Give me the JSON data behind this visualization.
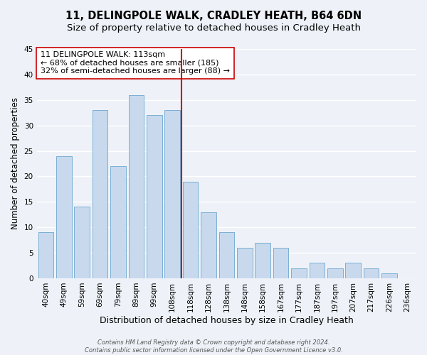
{
  "title": "11, DELINGPOLE WALK, CRADLEY HEATH, B64 6DN",
  "subtitle": "Size of property relative to detached houses in Cradley Heath",
  "xlabel": "Distribution of detached houses by size in Cradley Heath",
  "ylabel": "Number of detached properties",
  "footer_line1": "Contains HM Land Registry data © Crown copyright and database right 2024.",
  "footer_line2": "Contains public sector information licensed under the Open Government Licence v3.0.",
  "bar_labels": [
    "40sqm",
    "49sqm",
    "59sqm",
    "69sqm",
    "79sqm",
    "89sqm",
    "99sqm",
    "108sqm",
    "118sqm",
    "128sqm",
    "138sqm",
    "148sqm",
    "158sqm",
    "167sqm",
    "177sqm",
    "187sqm",
    "197sqm",
    "207sqm",
    "217sqm",
    "226sqm",
    "236sqm"
  ],
  "bar_heights": [
    9,
    24,
    14,
    33,
    22,
    36,
    32,
    33,
    19,
    13,
    9,
    6,
    7,
    6,
    2,
    3,
    2,
    3,
    2,
    1,
    0
  ],
  "bar_color": "#c8d9ed",
  "bar_edge_color": "#7aafd4",
  "vline_index": 7.5,
  "vline_color": "#cc0000",
  "annotation_title": "11 DELINGPOLE WALK: 113sqm",
  "annotation_line1": "← 68% of detached houses are smaller (185)",
  "annotation_line2": "32% of semi-detached houses are larger (88) →",
  "annotation_box_facecolor": "#ffffff",
  "annotation_box_edgecolor": "#cc0000",
  "ylim": [
    0,
    45
  ],
  "yticks": [
    0,
    5,
    10,
    15,
    20,
    25,
    30,
    35,
    40,
    45
  ],
  "background_color": "#eef2f8",
  "grid_color": "#ffffff",
  "title_fontsize": 10.5,
  "subtitle_fontsize": 9.5,
  "xlabel_fontsize": 9,
  "ylabel_fontsize": 8.5,
  "tick_fontsize": 7.5,
  "annotation_fontsize": 8,
  "footer_fontsize": 6
}
